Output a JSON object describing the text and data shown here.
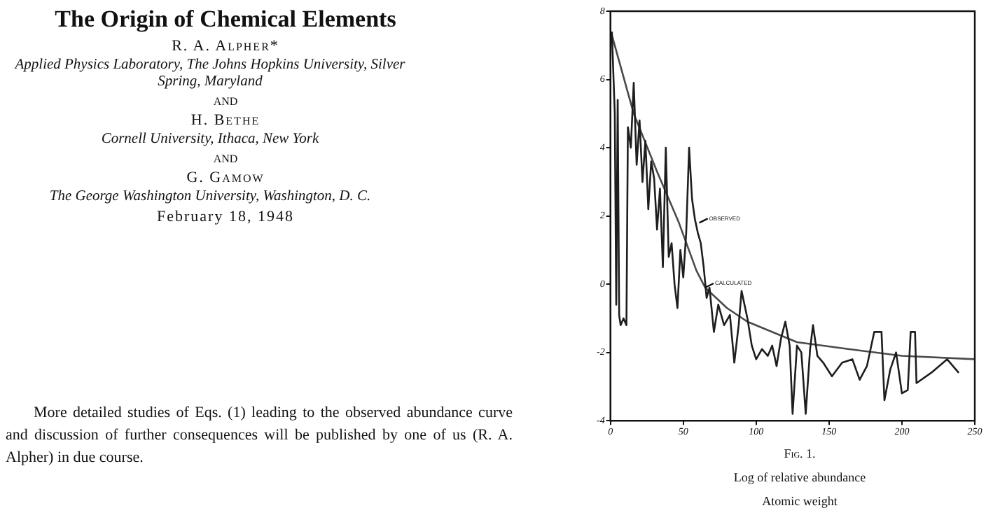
{
  "chart_data": {
    "type": "line",
    "title": "The Origin of Chemical Elements",
    "xlabel": "Atomic weight",
    "annotations": [
      "R. A. Alpher*",
      "Applied Physics Laboratory, The Johns Hopkins University, Silver Spring, Maryland",
      "AND",
      "H. Bethe",
      "Cornell University, Ithaca, New York",
      "AND",
      "G. Gamow",
      "The George Washington University, Washington, D. C.",
      "February 18, 1948",
      "More detailed studies of Eqs. (1) leading to the observed abundance curve and discussion of further consequences will be published by one of us (R. A. Alpher) in due course.",
      "Fig. 1.",
      "Log of relative abundance",
      {
        "text": "OBSERVED",
        "x": 61,
        "y": 1.8
      },
      {
        "text": "CALCULATED",
        "x": 65,
        "y": -0.1
      }
    ],
    "series": [
      {
        "color": "#1e1e1e",
        "x": [
          1,
          2,
          3,
          4,
          5,
          6,
          7,
          9,
          11,
          12,
          14,
          16,
          18,
          20,
          22,
          24,
          26,
          28,
          30,
          32,
          34,
          36,
          38,
          40,
          42,
          44,
          46,
          48,
          50,
          52,
          54,
          56,
          58,
          60,
          62,
          64,
          66,
          68,
          71,
          74,
          78,
          82,
          85,
          88,
          90,
          94,
          97,
          100,
          104,
          108,
          111,
          114,
          117,
          120,
          123,
          125,
          128,
          131,
          134,
          137,
          139,
          142,
          146,
          152,
          159,
          166,
          171,
          176,
          181,
          186,
          188,
          192,
          196,
          200,
          204,
          206,
          209,
          210,
          220,
          231,
          239
        ],
        "values": [
          7.4,
          6.2,
          5.0,
          -0.6,
          5.4,
          -0.9,
          -1.2,
          -1.0,
          -1.2,
          4.6,
          4.0,
          5.9,
          3.5,
          4.8,
          3.0,
          4.2,
          2.2,
          3.6,
          3.1,
          1.6,
          2.8,
          0.5,
          4.0,
          0.8,
          1.2,
          0.0,
          -0.7,
          1.0,
          0.2,
          1.5,
          4.0,
          2.5,
          1.9,
          1.5,
          1.2,
          0.5,
          -0.4,
          -0.1,
          -1.4,
          -0.6,
          -1.2,
          -0.9,
          -2.3,
          -1.2,
          -0.2,
          -1.0,
          -1.8,
          -2.2,
          -1.9,
          -2.1,
          -1.8,
          -2.4,
          -1.6,
          -1.1,
          -1.8,
          -3.8,
          -1.8,
          -2.0,
          -3.8,
          -1.9,
          -1.2,
          -2.1,
          -2.3,
          -2.7,
          -2.3,
          -2.2,
          -2.8,
          -2.4,
          -1.4,
          -1.4,
          -3.4,
          -2.5,
          -2.0,
          -3.2,
          -3.1,
          -1.4,
          -1.4,
          -2.9,
          -2.6,
          -2.2,
          -2.6
        ]
      },
      {
        "color": "#4a4a4a",
        "x": [
          1,
          16,
          32,
          47,
          59,
          65,
          80,
          94,
          128,
          163,
          200,
          250
        ],
        "values": [
          7.3,
          5.0,
          3.3,
          1.8,
          0.4,
          -0.1,
          -0.7,
          -1.1,
          -1.7,
          -1.9,
          -2.1,
          -2.2
        ]
      }
    ],
    "xlim": [
      0,
      250
    ],
    "xticks": [
      0,
      50,
      100,
      150,
      200,
      250
    ],
    "ylim": [
      -4,
      8
    ],
    "yticks": [
      -4,
      -2,
      0,
      2,
      4,
      6,
      8
    ],
    "grid": false,
    "legend": false,
    "marker": "none",
    "line_style": "solid"
  }
}
